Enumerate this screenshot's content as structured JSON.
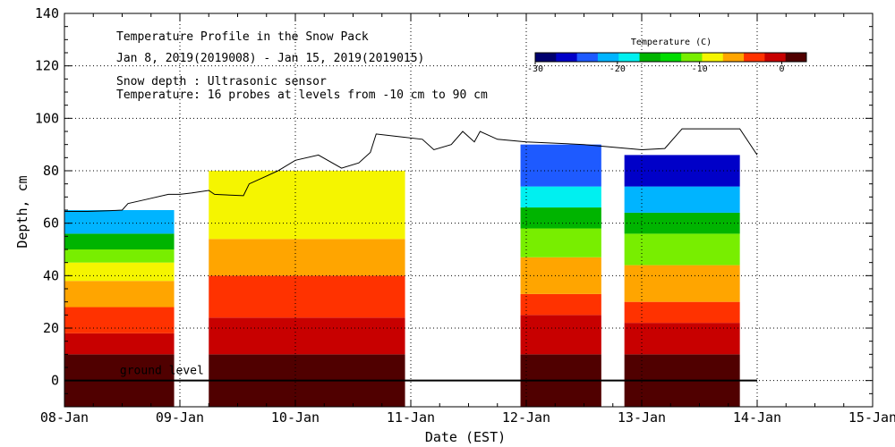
{
  "chart_data": {
    "type": "heatmap",
    "title": "Temperature Profile in the Snow Pack",
    "subtitle": "Jan 8, 2019(2019008) - Jan 15, 2019(2019015)",
    "notes": [
      "Snow depth : Ultrasonic sensor",
      "Temperature: 16 probes at levels from -10 cm to 90 cm"
    ],
    "xlabel": "Date (EST)",
    "ylabel": "Depth, cm",
    "x_tick_labels": [
      "08-Jan",
      "09-Jan",
      "10-Jan",
      "11-Jan",
      "12-Jan",
      "13-Jan",
      "14-Jan",
      "15-Jan"
    ],
    "xlim_days": [
      0,
      7
    ],
    "ylim": [
      -10,
      140
    ],
    "y_ticks": [
      0,
      20,
      40,
      60,
      80,
      100,
      120,
      140
    ],
    "grid": true,
    "ground_level_label": "ground level",
    "ground_level_depth": 0,
    "colorbar": {
      "title": "Temperature (C)",
      "range": [
        -30,
        3
      ],
      "tick_labels": [
        "-30",
        "-20",
        "-10",
        "0"
      ],
      "tick_values": [
        -30,
        -20,
        -10,
        0
      ],
      "colors": [
        "#00006e",
        "#0000c8",
        "#1e5aff",
        "#00b4ff",
        "#00f0f0",
        "#00b400",
        "#00dc00",
        "#78ee00",
        "#f5f500",
        "#ffa500",
        "#ff3200",
        "#c80000",
        "#500000"
      ]
    },
    "snow_depth": [
      [
        0.0,
        64.5
      ],
      [
        0.2,
        64.5
      ],
      [
        0.4,
        64.8
      ],
      [
        0.5,
        65.0
      ],
      [
        0.55,
        67.5
      ],
      [
        0.7,
        69
      ],
      [
        0.9,
        71
      ],
      [
        1.0,
        71
      ],
      [
        1.1,
        71.5
      ],
      [
        1.25,
        72.5
      ],
      [
        1.3,
        71
      ],
      [
        1.55,
        70.5
      ],
      [
        1.6,
        75
      ],
      [
        1.75,
        78
      ],
      [
        1.85,
        80
      ],
      [
        2.0,
        84
      ],
      [
        2.2,
        86
      ],
      [
        2.4,
        81
      ],
      [
        2.55,
        83
      ],
      [
        2.65,
        87
      ],
      [
        2.7,
        94
      ],
      [
        2.9,
        93
      ],
      [
        3.1,
        92
      ],
      [
        3.2,
        88
      ],
      [
        3.35,
        90
      ],
      [
        3.45,
        95
      ],
      [
        3.55,
        91
      ],
      [
        3.6,
        95
      ],
      [
        3.75,
        92
      ],
      [
        4.0,
        91
      ],
      [
        4.5,
        90
      ],
      [
        5.0,
        88
      ],
      [
        5.2,
        88.5
      ],
      [
        5.35,
        96
      ],
      [
        5.85,
        96
      ],
      [
        6.0,
        86
      ]
    ],
    "temperature_data_segments": [
      {
        "start_day": 0.0,
        "end_day": 0.95,
        "snow_top": 65,
        "layers": [
          {
            "from": -10,
            "to": 10,
            "temp": 1
          },
          {
            "from": 10,
            "to": 18,
            "temp": -1
          },
          {
            "from": 18,
            "to": 28,
            "temp": -3
          },
          {
            "from": 28,
            "to": 38,
            "temp": -6
          },
          {
            "from": 38,
            "to": 45,
            "temp": -9
          },
          {
            "from": 45,
            "to": 50,
            "temp": -12
          },
          {
            "from": 50,
            "to": 56,
            "temp": -15
          },
          {
            "from": 56,
            "to": 65,
            "temp": -21
          }
        ]
      },
      {
        "start_day": 1.25,
        "end_day": 2.95,
        "snow_top": 80,
        "layers": [
          {
            "from": -10,
            "to": 10,
            "temp": 1
          },
          {
            "from": 10,
            "to": 24,
            "temp": -1
          },
          {
            "from": 24,
            "to": 40,
            "temp": -3
          },
          {
            "from": 40,
            "to": 54,
            "temp": -6
          },
          {
            "from": 54,
            "to": 80,
            "temp": -8
          }
        ]
      },
      {
        "start_day": 3.95,
        "end_day": 4.65,
        "snow_top": 90,
        "layers": [
          {
            "from": -10,
            "to": 10,
            "temp": 1
          },
          {
            "from": 10,
            "to": 25,
            "temp": -1
          },
          {
            "from": 25,
            "to": 33,
            "temp": -3
          },
          {
            "from": 33,
            "to": 47,
            "temp": -6
          },
          {
            "from": 47,
            "to": 58,
            "temp": -10
          },
          {
            "from": 58,
            "to": 66,
            "temp": -15
          },
          {
            "from": 66,
            "to": 74,
            "temp": -19
          },
          {
            "from": 74,
            "to": 90,
            "temp": -24
          }
        ]
      },
      {
        "start_day": 4.85,
        "end_day": 5.85,
        "snow_top": 86,
        "layers": [
          {
            "from": -10,
            "to": 10,
            "temp": 1
          },
          {
            "from": 10,
            "to": 22,
            "temp": -1
          },
          {
            "from": 22,
            "to": 30,
            "temp": -3
          },
          {
            "from": 30,
            "to": 44,
            "temp": -6
          },
          {
            "from": 44,
            "to": 56,
            "temp": -10
          },
          {
            "from": 56,
            "to": 64,
            "temp": -15
          },
          {
            "from": 64,
            "to": 74,
            "temp": -20
          },
          {
            "from": 74,
            "to": 86,
            "temp": -26
          }
        ]
      }
    ]
  }
}
